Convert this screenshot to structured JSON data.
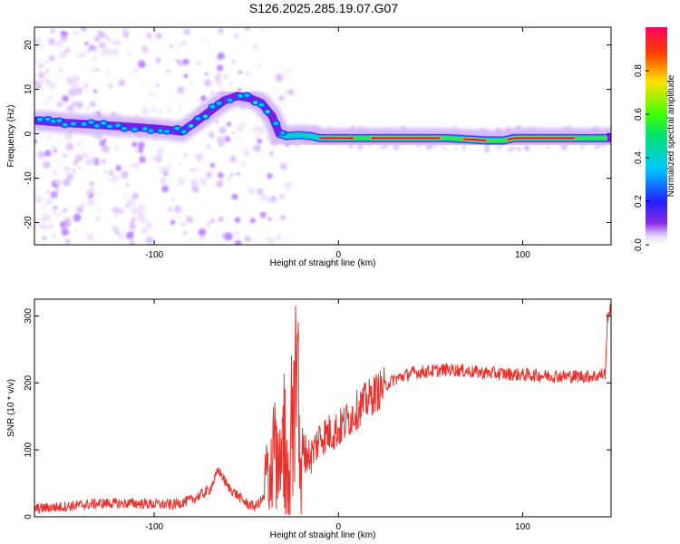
{
  "title": "S126.2025.285.19.07.G07",
  "chart_data": [
    {
      "type": "heatmap",
      "title": "S126.2025.285.19.07.G07",
      "xlabel": "Height of straight line (km)",
      "ylabel": "Frequency (Hz)",
      "xlim": [
        -165,
        148
      ],
      "ylim": [
        -25,
        24
      ],
      "x_ticks": [
        -100,
        0,
        100
      ],
      "y_ticks": [
        -20,
        -10,
        0,
        10,
        20
      ],
      "colorbar": {
        "label": "Normalized spectral amplitude",
        "range": [
          0,
          1
        ],
        "ticks": [
          0.0,
          0.2,
          0.4,
          0.6,
          0.8
        ]
      },
      "ridge": {
        "x": [
          -165,
          -150,
          -130,
          -110,
          -95,
          -85,
          -78,
          -70,
          -62,
          -55,
          -48,
          -42,
          -36,
          -32,
          -28,
          -22,
          -15,
          -10,
          0,
          10,
          30,
          60,
          80,
          90,
          95,
          110,
          130,
          148
        ],
        "y": [
          3,
          2.5,
          2,
          1.5,
          1,
          0.5,
          2.5,
          5,
          7.5,
          8.5,
          8,
          7,
          4,
          0,
          -0.5,
          -0.3,
          -0.5,
          -1,
          -1,
          -1,
          -1,
          -1,
          -1.5,
          -1.5,
          -1,
          -1,
          -1,
          -1
        ]
      }
    },
    {
      "type": "line",
      "xlabel": "Height of straight line (km)",
      "ylabel": "SNR (10 * v/v)",
      "xlim": [
        -165,
        148
      ],
      "ylim": [
        0,
        325
      ],
      "x_ticks": [
        -100,
        0,
        100
      ],
      "y_ticks": [
        0,
        100,
        200,
        300
      ],
      "series": [
        {
          "name": "SNR",
          "color": "#e8322e",
          "x": [
            -165,
            -150,
            -130,
            -110,
            -90,
            -80,
            -70,
            -65,
            -60,
            -50,
            -45,
            -40,
            -36,
            -30,
            -25,
            -22,
            -20,
            -15,
            -10,
            0,
            10,
            20,
            30,
            40,
            60,
            80,
            100,
            120,
            140,
            145,
            146,
            148
          ],
          "y": [
            12,
            15,
            20,
            20,
            18,
            25,
            40,
            70,
            45,
            20,
            15,
            30,
            80,
            110,
            150,
            160,
            100,
            90,
            120,
            130,
            160,
            185,
            205,
            215,
            220,
            215,
            212,
            210,
            210,
            215,
            300,
            310
          ]
        }
      ]
    }
  ]
}
